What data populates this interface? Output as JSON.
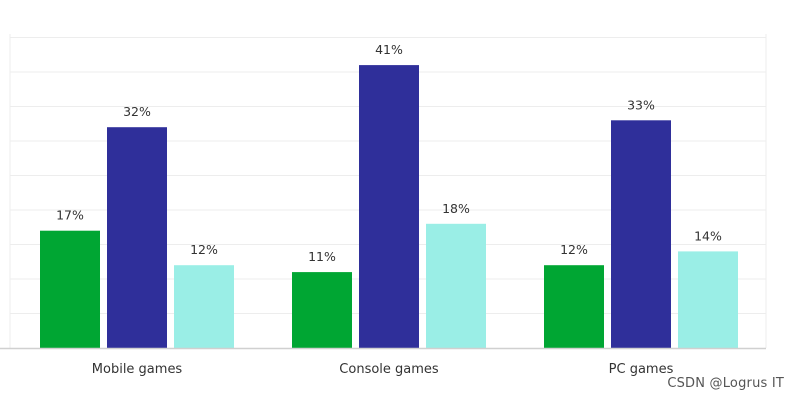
{
  "chart_data": {
    "type": "bar",
    "categories": [
      "Mobile games",
      "Console games",
      "PC games"
    ],
    "series": [
      {
        "values": [
          17,
          11,
          12
        ]
      },
      {
        "values": [
          32,
          41,
          33
        ]
      },
      {
        "values": [
          12,
          18,
          14
        ]
      }
    ],
    "value_suffix": "%",
    "ylim": [
      0,
      45
    ],
    "grid": true,
    "legend": "none",
    "title": "",
    "xlabel": "",
    "ylabel": ""
  },
  "colors": {
    "series": [
      "#00a633",
      "#2f2f9a",
      "#9aeee6"
    ],
    "grid": "#ededed",
    "axis": "#d0d0d0",
    "label": "#333333"
  },
  "watermark": "CSDN @Logrus IT"
}
